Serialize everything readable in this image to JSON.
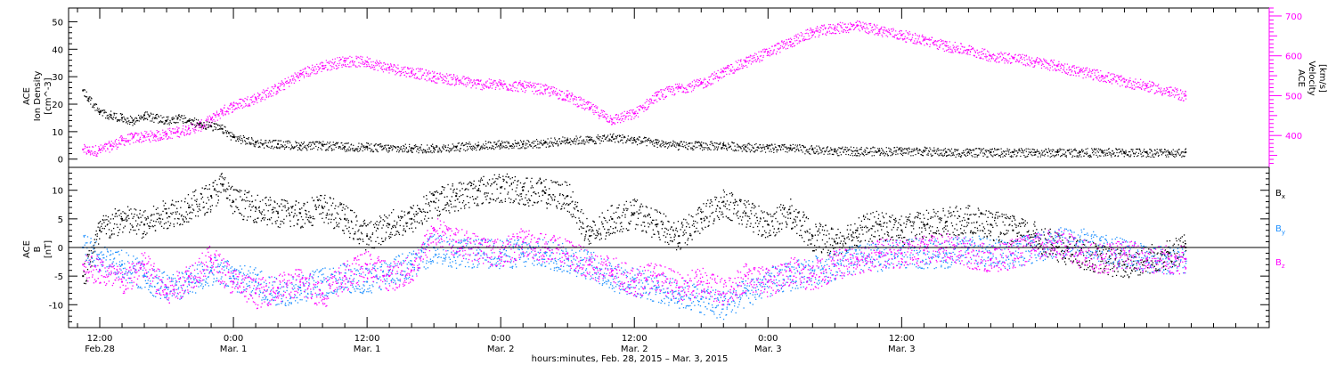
{
  "chart_data": [
    {
      "type": "scatter",
      "panel": "solar-wind-plasma",
      "ylabel": [
        "ACE",
        "Ion Density",
        "[cm^-3]"
      ],
      "ylabel_right": [
        "ACE",
        "Velocity",
        "[km/s]"
      ],
      "ylim": [
        -3,
        55
      ],
      "yticks": [
        0,
        10,
        20,
        30,
        40,
        50
      ],
      "ylim_right": [
        320,
        720
      ],
      "yticks_right": [
        400,
        500,
        600,
        700
      ],
      "yticks_right_labels": [
        "400",
        "500",
        "600",
        "700"
      ],
      "colors": {
        "density": "#000000",
        "velocity": "#ff00ff"
      },
      "series": [
        {
          "key": "density",
          "axis": "left",
          "color": "#000000",
          "x": [
            10.5,
            11,
            12,
            13,
            14,
            15,
            16,
            17,
            18,
            19,
            20,
            21,
            22,
            23,
            24,
            26,
            28,
            30,
            32,
            34,
            36,
            38,
            40,
            42,
            44,
            46,
            48,
            50,
            52,
            54,
            56,
            58,
            60,
            62,
            64,
            66,
            68,
            70,
            72,
            74,
            76,
            78,
            80,
            82,
            84,
            86,
            88,
            90,
            92,
            94,
            96,
            98,
            100,
            102,
            104,
            106,
            108,
            109.5
          ],
          "y": [
            25,
            22,
            17,
            16,
            15,
            14,
            16,
            15,
            14,
            15,
            14,
            13,
            12,
            11,
            8,
            6,
            5.5,
            5,
            5,
            4.5,
            4.5,
            4,
            4,
            4,
            4.5,
            5,
            5.5,
            5.5,
            6,
            7,
            7,
            8,
            7,
            6,
            5,
            5,
            5,
            4.5,
            4,
            4,
            3.5,
            3,
            3,
            3,
            3,
            3,
            2.5,
            2.5,
            2.5,
            2.5,
            2.5,
            2.5,
            2.5,
            2.5,
            2.5,
            2.5,
            2.5,
            2.5
          ]
        },
        {
          "key": "velocity",
          "axis": "right",
          "color": "#ff00ff",
          "x": [
            10.5,
            11,
            12,
            13,
            14,
            15,
            16,
            17,
            18,
            19,
            20,
            21,
            22,
            23,
            24,
            26,
            28,
            30,
            32,
            34,
            36,
            38,
            40,
            42,
            44,
            46,
            48,
            50,
            52,
            54,
            56,
            58,
            60,
            62,
            64,
            66,
            68,
            70,
            72,
            74,
            76,
            78,
            80,
            82,
            84,
            86,
            88,
            90,
            92,
            94,
            96,
            98,
            100,
            102,
            104,
            106,
            108,
            109.5
          ],
          "y": [
            365,
            362,
            364,
            375,
            388,
            395,
            398,
            400,
            405,
            410,
            418,
            425,
            440,
            462,
            475,
            495,
            520,
            555,
            575,
            588,
            585,
            570,
            560,
            548,
            540,
            530,
            528,
            524,
            515,
            500,
            470,
            440,
            455,
            500,
            520,
            530,
            560,
            585,
            610,
            635,
            660,
            670,
            675,
            665,
            652,
            640,
            625,
            615,
            600,
            595,
            585,
            575,
            560,
            550,
            535,
            525,
            510,
            500
          ]
        }
      ]
    },
    {
      "type": "scatter",
      "panel": "magnetic-field",
      "ylabel": [
        "ACE",
        "B",
        "[nT]"
      ],
      "ylim": [
        -14,
        14
      ],
      "yticks": [
        -10,
        -5,
        0,
        5,
        10
      ],
      "zero_line": true,
      "legend_position": "right",
      "legend": [
        {
          "name": "Bx",
          "main": "B",
          "sub": "x",
          "color": "#000000"
        },
        {
          "name": "By",
          "main": "B",
          "sub": "y",
          "color": "#1e90ff"
        },
        {
          "name": "Bz",
          "main": "B",
          "sub": "z",
          "color": "#ff00ff"
        }
      ],
      "series": [
        {
          "name": "Bx",
          "color": "#000000",
          "x": [
            10.5,
            12,
            14,
            16,
            18,
            20,
            22,
            23,
            24,
            26,
            28,
            30,
            32,
            34,
            36,
            38,
            40,
            42,
            44,
            46,
            48,
            50,
            52,
            54,
            56,
            58,
            60,
            62,
            64,
            66,
            68,
            70,
            72,
            74,
            76,
            78,
            80,
            82,
            84,
            86,
            88,
            90,
            92,
            94,
            96,
            98,
            100,
            102,
            104,
            106,
            108,
            109.5
          ],
          "y": [
            -5,
            3,
            5,
            4,
            6,
            7,
            9,
            11,
            8,
            7,
            6,
            6,
            7,
            5,
            2,
            4,
            5,
            8,
            9,
            10,
            10.5,
            10,
            9.5,
            9,
            2,
            5,
            6,
            4,
            2,
            5,
            8,
            6,
            4,
            6,
            2,
            1,
            3,
            4,
            3,
            4,
            4.5,
            5,
            4,
            3,
            2,
            0,
            -1,
            -2,
            -3,
            -2,
            -1,
            0
          ]
        },
        {
          "name": "By",
          "color": "#1e90ff",
          "x": [
            10.5,
            12,
            14,
            16,
            18,
            20,
            22,
            24,
            26,
            28,
            30,
            32,
            34,
            36,
            38,
            40,
            42,
            44,
            46,
            48,
            50,
            52,
            54,
            56,
            58,
            60,
            62,
            64,
            66,
            68,
            70,
            72,
            74,
            76,
            78,
            80,
            82,
            84,
            86,
            88,
            90,
            92,
            94,
            96,
            98,
            100,
            102,
            104,
            106,
            108,
            109.5
          ],
          "y": [
            0,
            -2,
            -3,
            -5,
            -7,
            -6,
            -4,
            -5,
            -6,
            -8,
            -7,
            -6,
            -5,
            -6,
            -4,
            -3,
            0,
            -1,
            -1,
            -1,
            -1,
            -1,
            -2,
            -3,
            -5,
            -6,
            -7,
            -8,
            -9,
            -10,
            -8,
            -6,
            -5,
            -4,
            -3,
            -2,
            -1.5,
            -1,
            -1,
            -1,
            0,
            -1,
            -1,
            0,
            1,
            1,
            0,
            -1,
            -2,
            -2,
            -2
          ]
        },
        {
          "name": "Bz",
          "color": "#ff00ff",
          "x": [
            10.5,
            12,
            14,
            16,
            18,
            20,
            22,
            24,
            26,
            28,
            30,
            32,
            34,
            36,
            38,
            40,
            42,
            44,
            46,
            48,
            50,
            52,
            54,
            56,
            58,
            60,
            62,
            64,
            66,
            68,
            70,
            72,
            74,
            76,
            78,
            80,
            82,
            84,
            86,
            88,
            90,
            92,
            94,
            96,
            98,
            100,
            102,
            104,
            106,
            108,
            109.5
          ],
          "y": [
            -3,
            -4,
            -6,
            -3,
            -8,
            -5,
            -2,
            -6,
            -8,
            -7,
            -6,
            -8,
            -5,
            -3,
            -5,
            -4,
            3,
            1,
            0,
            -1,
            1,
            0,
            -1,
            -3,
            -4,
            -6,
            -5,
            -7,
            -6,
            -8,
            -5,
            -6,
            -4,
            -5,
            -3,
            -2,
            -1,
            -1,
            -0.5,
            0,
            -1,
            -2,
            -1,
            0,
            1,
            -1,
            -2,
            -1,
            -2,
            -2,
            -2
          ]
        }
      ]
    }
  ],
  "x_axis": {
    "range_hours": [
      9.2,
      117
    ],
    "ticks": [
      {
        "hour": 12,
        "top": "12:00",
        "bottom": "Feb.28"
      },
      {
        "hour": 24,
        "top": "0:00",
        "bottom": "Mar. 1"
      },
      {
        "hour": 36,
        "top": "12:00",
        "bottom": "Mar. 1"
      },
      {
        "hour": 48,
        "top": "0:00",
        "bottom": "Mar. 2"
      },
      {
        "hour": 60,
        "top": "12:00",
        "bottom": "Mar. 2"
      },
      {
        "hour": 72,
        "top": "0:00",
        "bottom": "Mar. 3"
      },
      {
        "hour": 84,
        "top": "12:00",
        "bottom": "Mar. 3"
      }
    ],
    "minor_tick_hours": 2,
    "title": "hours:minutes, Feb. 28, 2015 – Mar.  3, 2015"
  }
}
